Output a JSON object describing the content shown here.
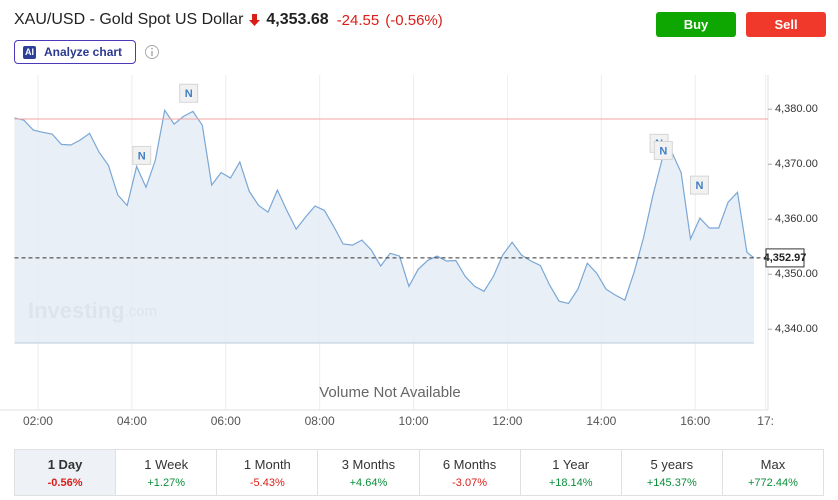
{
  "header": {
    "title": "XAU/USD - Gold Spot US Dollar",
    "price": "4,353.68",
    "change": "-24.55",
    "change_pct": "(-0.56%)",
    "buy": "Buy",
    "sell": "Sell",
    "ai_badge": "AI",
    "analyze": "Analyze chart"
  },
  "chart_data": {
    "type": "area",
    "color": "#7aa7d6",
    "fill": "#e4ecf5",
    "x": [
      1.5,
      1.7,
      1.9,
      2.1,
      2.3,
      2.5,
      2.7,
      2.9,
      3.1,
      3.3,
      3.5,
      3.7,
      3.9,
      4.1,
      4.3,
      4.5,
      4.7,
      4.9,
      5.1,
      5.3,
      5.5,
      5.7,
      5.9,
      6.1,
      6.3,
      6.5,
      6.7,
      6.9,
      7.1,
      7.3,
      7.5,
      7.7,
      7.9,
      8.1,
      8.3,
      8.5,
      8.7,
      8.9,
      9.1,
      9.3,
      9.5,
      9.7,
      9.9,
      10.1,
      10.3,
      10.5,
      10.7,
      10.9,
      11.1,
      11.3,
      11.5,
      11.7,
      11.9,
      12.1,
      12.3,
      12.5,
      12.7,
      12.9,
      13.1,
      13.3,
      13.5,
      13.7,
      13.9,
      14.1,
      14.3,
      14.5,
      14.7,
      14.9,
      15.1,
      15.3,
      15.5,
      15.7,
      15.9,
      16.1,
      16.3,
      16.5,
      16.7,
      16.9,
      17.1,
      17.25
    ],
    "values": [
      4378.4,
      4378.0,
      4376.2,
      4375.8,
      4375.5,
      4373.6,
      4373.5,
      4374.4,
      4375.6,
      4372.2,
      4369.8,
      4364.4,
      4362.5,
      4369.6,
      4365.8,
      4370.7,
      4379.8,
      4377.3,
      4378.7,
      4379.6,
      4377.1,
      4366.2,
      4368.5,
      4367.5,
      4370.4,
      4365.1,
      4362.5,
      4361.3,
      4365.3,
      4361.6,
      4358.2,
      4360.4,
      4362.4,
      4361.6,
      4358.7,
      4355.5,
      4355.3,
      4356.2,
      4354.4,
      4351.5,
      4353.8,
      4353.3,
      4347.8,
      4350.9,
      4352.5,
      4353.3,
      4352.4,
      4352.5,
      4349.6,
      4347.8,
      4346.9,
      4349.6,
      4353.5,
      4355.8,
      4353.5,
      4352.4,
      4351.6,
      4348.0,
      4345.1,
      4344.7,
      4347.3,
      4352.0,
      4350.2,
      4347.3,
      4346.2,
      4345.3,
      4350.4,
      4356.7,
      4364.4,
      4371.1,
      4372.2,
      4368.5,
      4356.4,
      4360.2,
      4358.4,
      4358.4,
      4363.1,
      4364.9,
      4354.0,
      4352.97
    ],
    "xlim": [
      1.5,
      17.55
    ],
    "ylim": [
      4337.5,
      4384.4
    ],
    "xticks": [
      {
        "value": 2,
        "label": "02:00"
      },
      {
        "value": 4,
        "label": "04:00"
      },
      {
        "value": 6,
        "label": "06:00"
      },
      {
        "value": 8,
        "label": "08:00"
      },
      {
        "value": 10,
        "label": "10:00"
      },
      {
        "value": 12,
        "label": "12:00"
      },
      {
        "value": 14,
        "label": "14:00"
      },
      {
        "value": 16,
        "label": "16:00"
      },
      {
        "value": 17.5,
        "label": "17:"
      }
    ],
    "yticks": [
      {
        "value": 4340,
        "label": "4,340.00"
      },
      {
        "value": 4350,
        "label": "4,350.00"
      },
      {
        "value": 4360,
        "label": "4,360.00"
      },
      {
        "value": 4370,
        "label": "4,370.00"
      },
      {
        "value": 4380,
        "label": "4,380.00"
      }
    ],
    "grid": true,
    "reference_line": 4378.23,
    "last_price": {
      "value": 4352.97,
      "label": "4,352.97"
    },
    "news_markers": [
      {
        "x": 4.21,
        "y": 4371.6,
        "label": "N"
      },
      {
        "x": 5.21,
        "y": 4382.9,
        "label": "N"
      },
      {
        "x": 15.23,
        "y": 4373.8,
        "label": "N"
      },
      {
        "x": 15.32,
        "y": 4372.5,
        "label": "N"
      },
      {
        "x": 16.09,
        "y": 4366.2,
        "label": "N"
      }
    ],
    "watermark": "Investing",
    "watermark_suffix": ".com",
    "volume_note": "Volume Not Available"
  },
  "timeframes": [
    {
      "label": "1 Day",
      "change": "-0.56%"
    },
    {
      "label": "1 Week",
      "change": "+1.27%"
    },
    {
      "label": "1 Month",
      "change": "-5.43%"
    },
    {
      "label": "3 Months",
      "change": "+4.64%"
    },
    {
      "label": "6 Months",
      "change": "-3.07%"
    },
    {
      "label": "1 Year",
      "change": "+18.14%"
    },
    {
      "label": "5 years",
      "change": "+145.37%"
    },
    {
      "label": "Max",
      "change": "+772.44%"
    }
  ],
  "selected_timeframe": 0
}
